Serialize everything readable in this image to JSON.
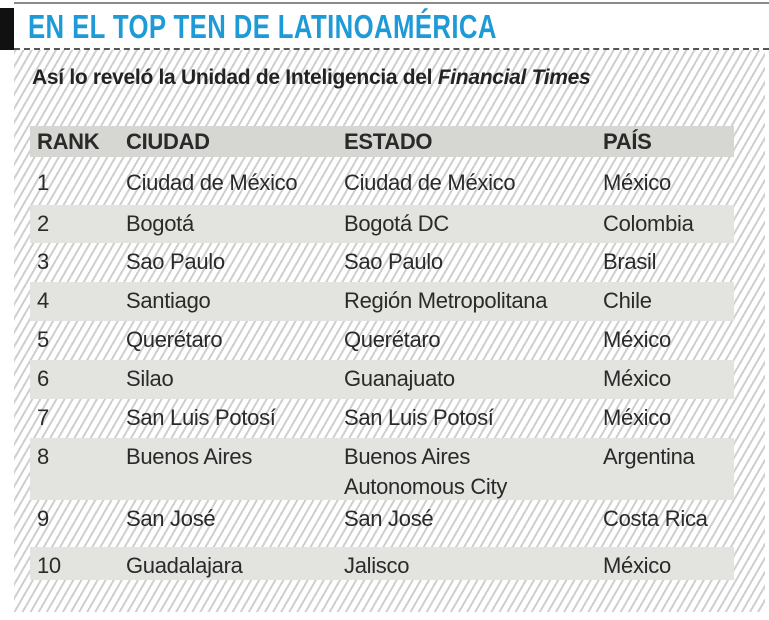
{
  "title": "EN EL TOP TEN DE LATINOAMÉRICA",
  "subtitle": {
    "prefix": "Así lo reveló la Unidad de Inteligencia del ",
    "italic": "Financial Times"
  },
  "colors": {
    "title": "#1e9ad6",
    "header_band": "#d6d6d2",
    "row_band": "#e3e3df"
  },
  "table": {
    "headers": [
      "RANK",
      "CIUDAD",
      "ESTADO",
      "PAÍS"
    ],
    "rows": [
      [
        "1",
        "Ciudad de México",
        "Ciudad de México",
        "México"
      ],
      [
        "2",
        "Bogotá",
        "Bogotá DC",
        "Colombia"
      ],
      [
        "3",
        "Sao Paulo",
        "Sao Paulo",
        "Brasil"
      ],
      [
        "4",
        "Santiago",
        "Región Metropolitana",
        "Chile"
      ],
      [
        "5",
        "Querétaro",
        "Querétaro",
        "México"
      ],
      [
        "6",
        "Silao",
        "Guanajuato",
        "México"
      ],
      [
        "7",
        "San Luis Potosí",
        "San Luis Potosí",
        "México"
      ],
      [
        "8",
        "Buenos Aires",
        "Buenos Aires\nAutonomous City",
        "Argentina"
      ],
      [
        "9",
        "San José",
        "San José",
        "Costa Rica"
      ],
      [
        "10",
        "Guadalajara",
        "Jalisco",
        "México"
      ]
    ]
  }
}
